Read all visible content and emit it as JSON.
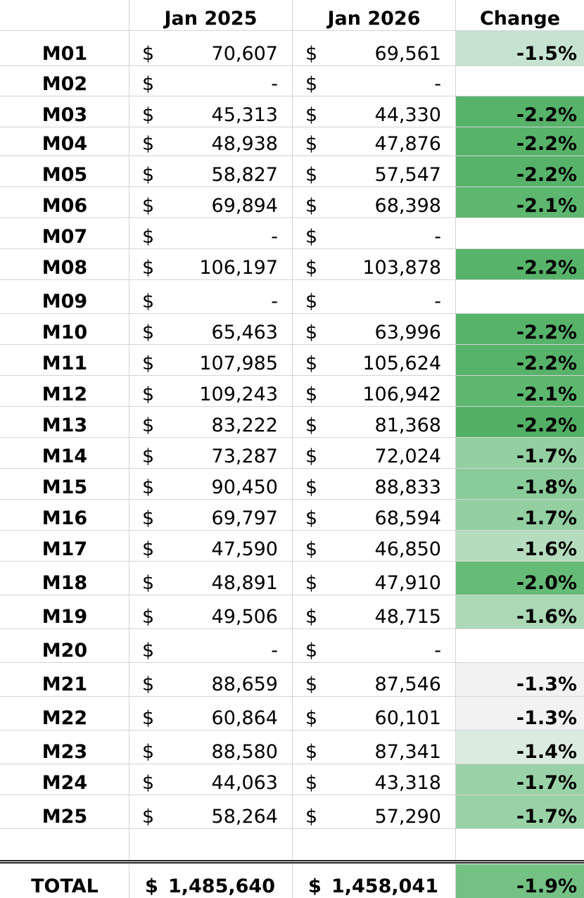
{
  "headers": {
    "col0": "",
    "col1": "Jan 2025",
    "col2": "Jan 2026",
    "col3": "Change"
  },
  "currency_symbol": "$",
  "rows": [
    {
      "label": "M01",
      "v2025": "70,607",
      "v2026": "69,561",
      "change": "-1.5%",
      "fill": "#c6e3cf"
    },
    {
      "label": "M02",
      "v2025": "-",
      "v2026": "-",
      "change": "",
      "fill": "#ffffff"
    },
    {
      "label": "M03",
      "v2025": "45,313",
      "v2026": "44,330",
      "change": "-2.2%",
      "fill": "#57b36a"
    },
    {
      "label": "M04",
      "v2025": "48,938",
      "v2026": "47,876",
      "change": "-2.2%",
      "fill": "#57b36a"
    },
    {
      "label": "M05",
      "v2025": "58,827",
      "v2026": "57,547",
      "change": "-2.2%",
      "fill": "#57b36a"
    },
    {
      "label": "M06",
      "v2025": "69,894",
      "v2026": "68,398",
      "change": "-2.1%",
      "fill": "#5db76f"
    },
    {
      "label": "M07",
      "v2025": "-",
      "v2026": "-",
      "change": "",
      "fill": "#ffffff"
    },
    {
      "label": "M08",
      "v2025": "106,197",
      "v2026": "103,878",
      "change": "-2.2%",
      "fill": "#57b36a"
    },
    {
      "label": "M09",
      "v2025": "-",
      "v2026": "-",
      "change": "",
      "fill": "#ffffff"
    },
    {
      "label": "M10",
      "v2025": "65,463",
      "v2026": "63,996",
      "change": "-2.2%",
      "fill": "#57b36a"
    },
    {
      "label": "M11",
      "v2025": "107,985",
      "v2026": "105,624",
      "change": "-2.2%",
      "fill": "#57b36a"
    },
    {
      "label": "M12",
      "v2025": "109,243",
      "v2026": "106,942",
      "change": "-2.1%",
      "fill": "#5db76f"
    },
    {
      "label": "M13",
      "v2025": "83,222",
      "v2026": "81,368",
      "change": "-2.2%",
      "fill": "#52b065"
    },
    {
      "label": "M14",
      "v2025": "73,287",
      "v2026": "72,024",
      "change": "-1.7%",
      "fill": "#94cfa2"
    },
    {
      "label": "M15",
      "v2025": "90,450",
      "v2026": "88,833",
      "change": "-1.8%",
      "fill": "#8acb9a"
    },
    {
      "label": "M16",
      "v2025": "69,797",
      "v2026": "68,594",
      "change": "-1.7%",
      "fill": "#94cfa2"
    },
    {
      "label": "M17",
      "v2025": "47,590",
      "v2026": "46,850",
      "change": "-1.6%",
      "fill": "#b6dcbf"
    },
    {
      "label": "M18",
      "v2025": "48,891",
      "v2026": "47,910",
      "change": "-2.0%",
      "fill": "#66bb77"
    },
    {
      "label": "M19",
      "v2025": "49,506",
      "v2026": "48,715",
      "change": "-1.6%",
      "fill": "#abd8b5"
    },
    {
      "label": "M20",
      "v2025": "-",
      "v2026": "-",
      "change": "",
      "fill": "#ffffff"
    },
    {
      "label": "M21",
      "v2025": "88,659",
      "v2026": "87,546",
      "change": "-1.3%",
      "fill": "#f2f2f2"
    },
    {
      "label": "M22",
      "v2025": "60,864",
      "v2026": "60,101",
      "change": "-1.3%",
      "fill": "#f2f2f2"
    },
    {
      "label": "M23",
      "v2025": "88,580",
      "v2026": "87,341",
      "change": "-1.4%",
      "fill": "#dcebe0"
    },
    {
      "label": "M24",
      "v2025": "44,063",
      "v2026": "43,318",
      "change": "-1.7%",
      "fill": "#9ad2a7"
    },
    {
      "label": "M25",
      "v2025": "58,264",
      "v2026": "57,290",
      "change": "-1.7%",
      "fill": "#9ad2a7"
    }
  ],
  "total": {
    "label": "TOTAL",
    "v2025": "1,485,640",
    "v2026": "1,458,041",
    "change": "-1.9%",
    "fill": "#74c184"
  }
}
